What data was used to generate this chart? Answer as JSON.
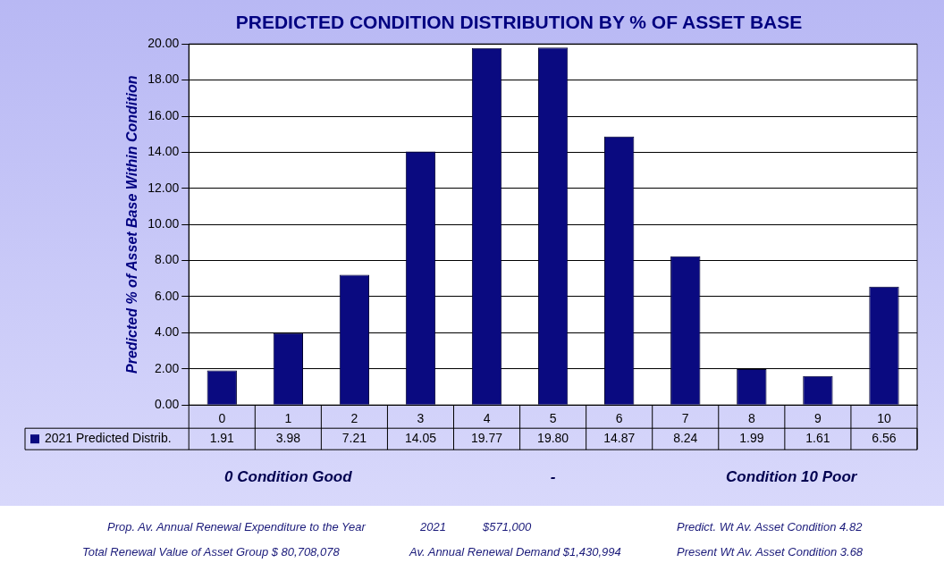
{
  "chart_data": {
    "type": "bar",
    "title": "PREDICTED CONDITION DISTRIBUTION BY % OF ASSET BASE",
    "ylabel": "Predicted % of Asset Base Within Condition",
    "categories": [
      "0",
      "1",
      "2",
      "3",
      "4",
      "5",
      "6",
      "7",
      "8",
      "9",
      "10"
    ],
    "series": [
      {
        "name": "2021 Predicted Distrib.",
        "color": "#0a0a80",
        "values": [
          1.91,
          3.98,
          7.21,
          14.05,
          19.77,
          19.8,
          14.87,
          8.24,
          1.99,
          1.61,
          6.56
        ],
        "value_labels": [
          "1.91",
          "3.98",
          "7.21",
          "14.05",
          "19.77",
          "19.80",
          "14.87",
          "8.24",
          "1.99",
          "1.61",
          "6.56"
        ]
      }
    ],
    "ylim": [
      0,
      20
    ],
    "yticks": [
      {
        "value": 0,
        "label": "0.00"
      },
      {
        "value": 2,
        "label": "2.00"
      },
      {
        "value": 4,
        "label": "4.00"
      },
      {
        "value": 6,
        "label": "6.00"
      },
      {
        "value": 8,
        "label": "8.00"
      },
      {
        "value": 10,
        "label": "10.00"
      },
      {
        "value": 12,
        "label": "12.00"
      },
      {
        "value": 14,
        "label": "14.00"
      },
      {
        "value": 16,
        "label": "16.00"
      },
      {
        "value": 18,
        "label": "18.00"
      },
      {
        "value": 20,
        "label": "20.00"
      }
    ],
    "grid": "y",
    "legend": "bottom left",
    "annotations": [
      "0 Condition Good",
      "-",
      "Condition 10 Poor",
      "Prop. Av. Annual Renewal Expenditure to the Year",
      "2021",
      "$571,000",
      "Predict. Wt Av. Asset Condition  4.82",
      "Total Renewal Value of Asset Group $  80,708,078",
      "Av. Annual Renewal Demand  $1,430,994",
      "Present Wt Av. Asset Condition  3.68"
    ]
  }
}
